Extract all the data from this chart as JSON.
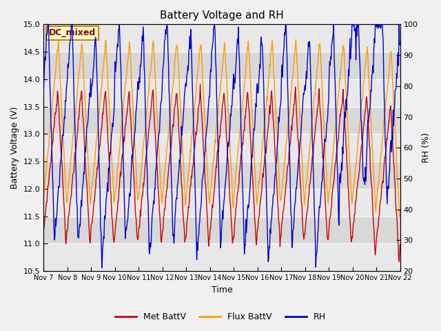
{
  "title": "Battery Voltage and RH",
  "xlabel": "Time",
  "ylabel_left": "Battery Voltage (V)",
  "ylabel_right": "RH (%)",
  "annotation": "DC_mixed",
  "ylim_left": [
    10.5,
    15.0
  ],
  "ylim_right": [
    20,
    100
  ],
  "yticks_left": [
    10.5,
    11.0,
    11.5,
    12.0,
    12.5,
    13.0,
    13.5,
    14.0,
    14.5,
    15.0
  ],
  "yticks_right": [
    20,
    30,
    40,
    50,
    60,
    70,
    80,
    90,
    100
  ],
  "xtick_labels": [
    "Nov 7",
    "Nov 8",
    "Nov 9",
    "Nov 10",
    "Nov 11",
    "Nov 12",
    "Nov 13",
    "Nov 14",
    "Nov 15",
    "Nov 16",
    "Nov 17",
    "Nov 18",
    "Nov 19",
    "Nov 20",
    "Nov 21",
    "Nov 22"
  ],
  "color_met": "#cc0000",
  "color_flux": "#ff9900",
  "color_rh": "#0000cc",
  "legend_labels": [
    "Met BattV",
    "Flux BattV",
    "RH"
  ],
  "fig_bg_color": "#f0f0f0",
  "plot_bg_color": "#e8e8e8",
  "band_color_light": "#e8e8e8",
  "band_color_dark": "#d8d8d8",
  "annotation_bg": "#ffffcc",
  "annotation_border": "#cc8800",
  "annotation_text_color": "#880000",
  "n_days": 15,
  "n_pts_per_day": 48
}
